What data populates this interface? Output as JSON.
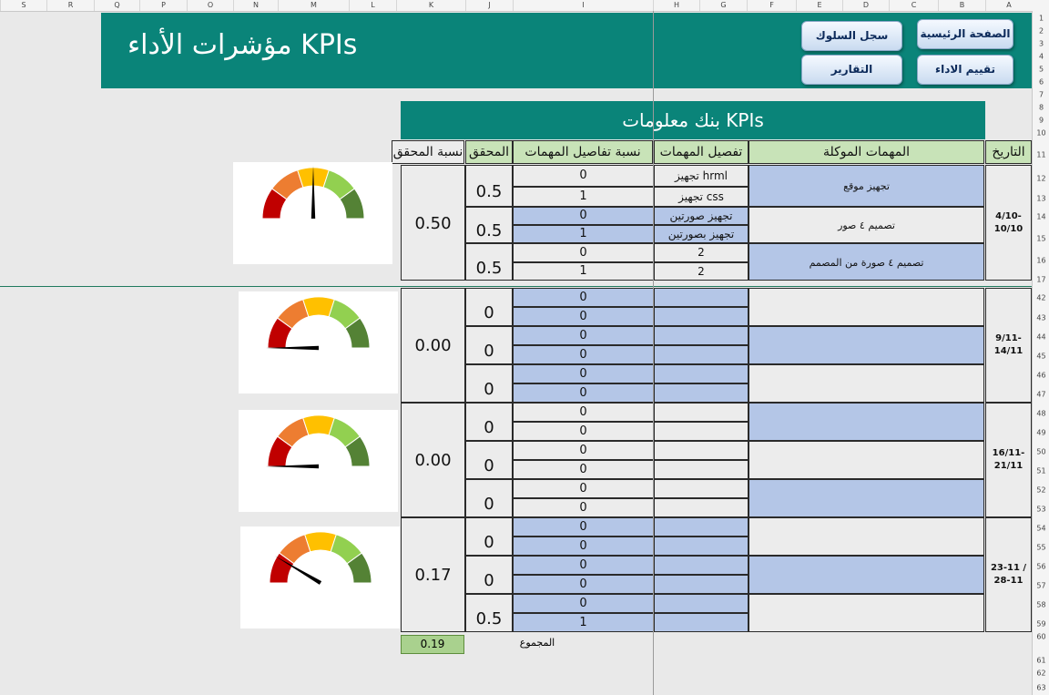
{
  "sheet": {
    "columns": [
      "S",
      "R",
      "Q",
      "P",
      "O",
      "N",
      "M",
      "L",
      "K",
      "J",
      "I",
      "H",
      "G",
      "F",
      "E",
      "D",
      "C",
      "B",
      "A"
    ],
    "rows": [
      "1",
      "2",
      "3",
      "4",
      "5",
      "6",
      "7",
      "8",
      "9",
      "10",
      "11",
      "12",
      "13",
      "14",
      "15",
      "16",
      "17",
      "42",
      "43",
      "44",
      "45",
      "46",
      "47",
      "48",
      "49",
      "50",
      "51",
      "52",
      "53",
      "54",
      "55",
      "56",
      "57",
      "58",
      "59",
      "60",
      "61",
      "62",
      "63"
    ]
  },
  "banner": {
    "title": "مؤشرات الأداء KPIs"
  },
  "nav": {
    "home": "الصفحة الرئيسية",
    "behavior": "سجل السلوك",
    "evaluation": "تقييم الاداء",
    "reports": "التقارير"
  },
  "bank_title": "بنك معلومات KPIs",
  "headers": {
    "date": "التاريخ",
    "tasks": "المهمات الموكلة",
    "details": "تفصيل المهمات",
    "details_ratio": "نسبة تفاصيل المهمات",
    "achieved": "المحقق",
    "achieved_ratio": "نسبة المحقق"
  },
  "weeks": [
    {
      "date": "4/10- 10/10",
      "ratio": "0.50",
      "gauge_value": 0.5,
      "tasks": [
        {
          "name": "تجهيز موقع",
          "achieved": "0.5",
          "details": [
            {
              "text": "تجهيز hrml",
              "value": "0"
            },
            {
              "text": "تجهيز css",
              "value": "1"
            }
          ]
        },
        {
          "name": "تصميم ٤ صور",
          "achieved": "0.5",
          "details": [
            {
              "text": "تجهيز صورتين",
              "value": "0"
            },
            {
              "text": "تجهيز بصورتين",
              "value": "1"
            }
          ]
        },
        {
          "name": "تصميم ٤ صورة من المصمم",
          "achieved": "0.5",
          "details": [
            {
              "text": "2",
              "value": "0"
            },
            {
              "text": "2",
              "value": "1"
            }
          ]
        }
      ]
    },
    {
      "date": "9/11- 14/11",
      "ratio": "0.00",
      "gauge_value": 0.0,
      "tasks": [
        {
          "name": "",
          "achieved": "0",
          "details": [
            {
              "text": "",
              "value": "0"
            },
            {
              "text": "",
              "value": "0"
            }
          ]
        },
        {
          "name": "",
          "achieved": "0",
          "details": [
            {
              "text": "",
              "value": "0"
            },
            {
              "text": "",
              "value": "0"
            }
          ]
        },
        {
          "name": "",
          "achieved": "0",
          "details": [
            {
              "text": "",
              "value": "0"
            },
            {
              "text": "",
              "value": "0"
            }
          ]
        }
      ]
    },
    {
      "date": "16/11- 21/11",
      "ratio": "0.00",
      "gauge_value": 0.0,
      "tasks": [
        {
          "name": "",
          "achieved": "0",
          "details": [
            {
              "text": "",
              "value": "0"
            },
            {
              "text": "",
              "value": "0"
            }
          ]
        },
        {
          "name": "",
          "achieved": "0",
          "details": [
            {
              "text": "",
              "value": "0"
            },
            {
              "text": "",
              "value": "0"
            }
          ]
        },
        {
          "name": "",
          "achieved": "0",
          "details": [
            {
              "text": "",
              "value": "0"
            },
            {
              "text": "",
              "value": "0"
            }
          ]
        }
      ]
    },
    {
      "date": "23-11 / 28-11",
      "ratio": "0.17",
      "gauge_value": 0.17,
      "tasks": [
        {
          "name": "",
          "achieved": "0",
          "details": [
            {
              "text": "",
              "value": "0"
            },
            {
              "text": "",
              "value": "0"
            }
          ]
        },
        {
          "name": "",
          "achieved": "0",
          "details": [
            {
              "text": "",
              "value": "0"
            },
            {
              "text": "",
              "value": "0"
            }
          ]
        },
        {
          "name": "",
          "achieved": "0.5",
          "details": [
            {
              "text": "",
              "value": "0"
            },
            {
              "text": "",
              "value": "1"
            }
          ]
        }
      ]
    }
  ],
  "total": {
    "label": "المجموع",
    "value": "0.19"
  },
  "colors": {
    "banner": "#0a8479",
    "header_green": "#c8e3b8",
    "cell_blue": "#b4c6e7",
    "cell_gray": "#ececec",
    "gauge": [
      "#c00000",
      "#ed7d31",
      "#ffc000",
      "#92d050",
      "#548235"
    ]
  }
}
